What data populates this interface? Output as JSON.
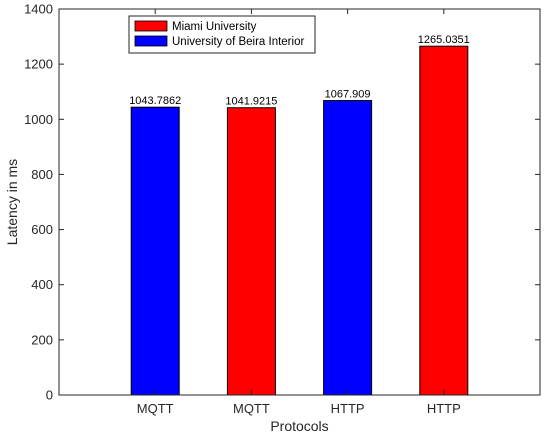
{
  "chart_data": {
    "type": "bar",
    "title": "",
    "xlabel": "Protocols",
    "ylabel": "Latency in ms",
    "ylim": [
      0,
      1400
    ],
    "yticks": [
      0,
      200,
      400,
      600,
      800,
      1000,
      1200,
      1400
    ],
    "categories": [
      "MQTT",
      "MQTT",
      "HTTP",
      "HTTP"
    ],
    "values": [
      1043.7862,
      1041.9215,
      1067.909,
      1265.0351
    ],
    "value_labels": [
      "1043.7862",
      "1041.9215",
      "1067.909",
      "1265.0351"
    ],
    "bar_series": [
      "University of Beira Interior",
      "Miami University",
      "University of Beira Interior",
      "Miami University"
    ],
    "series": [
      {
        "name": "Miami University",
        "color": "#ff0000"
      },
      {
        "name": "University of Beira Interior",
        "color": "#0000ff"
      }
    ],
    "legend_position": "top-left",
    "grid": false
  }
}
